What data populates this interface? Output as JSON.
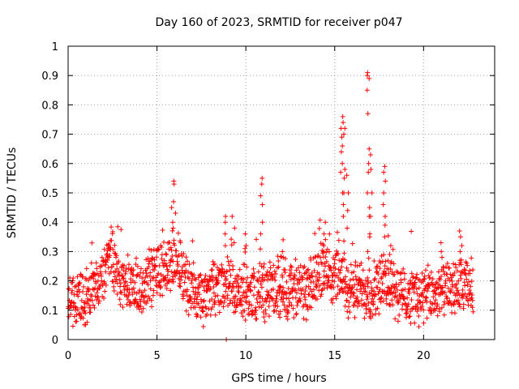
{
  "chart_data": {
    "type": "scatter",
    "title": "Day 160 of 2023, SRMTID for receiver p047",
    "xlabel": "GPS time / hours",
    "ylabel": "SRMTID / TECUs",
    "xlim": [
      0,
      24
    ],
    "ylim": [
      0,
      1
    ],
    "x_ticks": [
      "0",
      "5",
      "10",
      "15",
      "20"
    ],
    "y_ticks": [
      "0",
      "0.1",
      "0.2",
      "0.3",
      "0.4",
      "0.5",
      "0.6",
      "0.7",
      "0.8",
      "0.9",
      "1"
    ],
    "grid": true,
    "marker": "plus",
    "color": "#ff0000",
    "x_max_data": 22.8,
    "background": [
      [
        0,
        0.14
      ],
      [
        1,
        0.14
      ],
      [
        1.8,
        0.2
      ],
      [
        2.4,
        0.28
      ],
      [
        3,
        0.2
      ],
      [
        4,
        0.17
      ],
      [
        4.8,
        0.22
      ],
      [
        5.6,
        0.26
      ],
      [
        6.2,
        0.27
      ],
      [
        6.8,
        0.18
      ],
      [
        7.5,
        0.13
      ],
      [
        8.2,
        0.17
      ],
      [
        8.8,
        0.2
      ],
      [
        9.5,
        0.15
      ],
      [
        10.5,
        0.16
      ],
      [
        11.5,
        0.17
      ],
      [
        12.5,
        0.17
      ],
      [
        13.5,
        0.16
      ],
      [
        14.3,
        0.25
      ],
      [
        15,
        0.22
      ],
      [
        16,
        0.17
      ],
      [
        17,
        0.17
      ],
      [
        18,
        0.2
      ],
      [
        18.8,
        0.15
      ],
      [
        19.5,
        0.15
      ],
      [
        20.5,
        0.15
      ],
      [
        21.5,
        0.17
      ],
      [
        22.8,
        0.18
      ]
    ],
    "spikes": [
      {
        "x": 5.9,
        "values": [
          0.54,
          0.53,
          0.47,
          0.45,
          0.4,
          0.38
        ]
      },
      {
        "x": 8.9,
        "values": [
          0.42,
          0.4,
          0.36,
          0.32,
          0.0
        ]
      },
      {
        "x": 9.3,
        "values": [
          0.42,
          0.38,
          0.33
        ]
      },
      {
        "x": 10.9,
        "values": [
          0.55,
          0.53,
          0.49,
          0.46,
          0.4,
          0.36
        ]
      },
      {
        "x": 10.0,
        "values": [
          0.36,
          0.32,
          0.31
        ]
      },
      {
        "x": 12.1,
        "values": [
          0.34,
          0.3,
          0.28
        ]
      },
      {
        "x": 14.4,
        "values": [
          0.4,
          0.36,
          0.32,
          0.3
        ]
      },
      {
        "x": 15.5,
        "values": [
          0.76,
          0.74,
          0.72,
          0.7,
          0.66,
          0.6,
          0.58,
          0.55,
          0.5,
          0.46,
          0.42
        ]
      },
      {
        "x": 15.4,
        "values": [
          0.72,
          0.69,
          0.64,
          0.57,
          0.5
        ]
      },
      {
        "x": 15.75,
        "values": [
          0.56,
          0.5,
          0.44,
          0.38
        ]
      },
      {
        "x": 16.9,
        "values": [
          0.91,
          0.9,
          0.89,
          0.85,
          0.77,
          0.65,
          0.6,
          0.57,
          0.5,
          0.45,
          0.42,
          0.35,
          0.3
        ]
      },
      {
        "x": 17.05,
        "values": [
          0.63,
          0.58,
          0.5,
          0.42,
          0.36
        ]
      },
      {
        "x": 17.8,
        "values": [
          0.59,
          0.57,
          0.54,
          0.5,
          0.46,
          0.42,
          0.39,
          0.35
        ]
      },
      {
        "x": 18.1,
        "values": [
          0.32,
          0.29,
          0.26,
          0.24
        ]
      },
      {
        "x": 21.0,
        "values": [
          0.33,
          0.3,
          0.28
        ]
      },
      {
        "x": 22.1,
        "values": [
          0.37,
          0.35,
          0.32,
          0.3,
          0.27
        ]
      }
    ]
  }
}
